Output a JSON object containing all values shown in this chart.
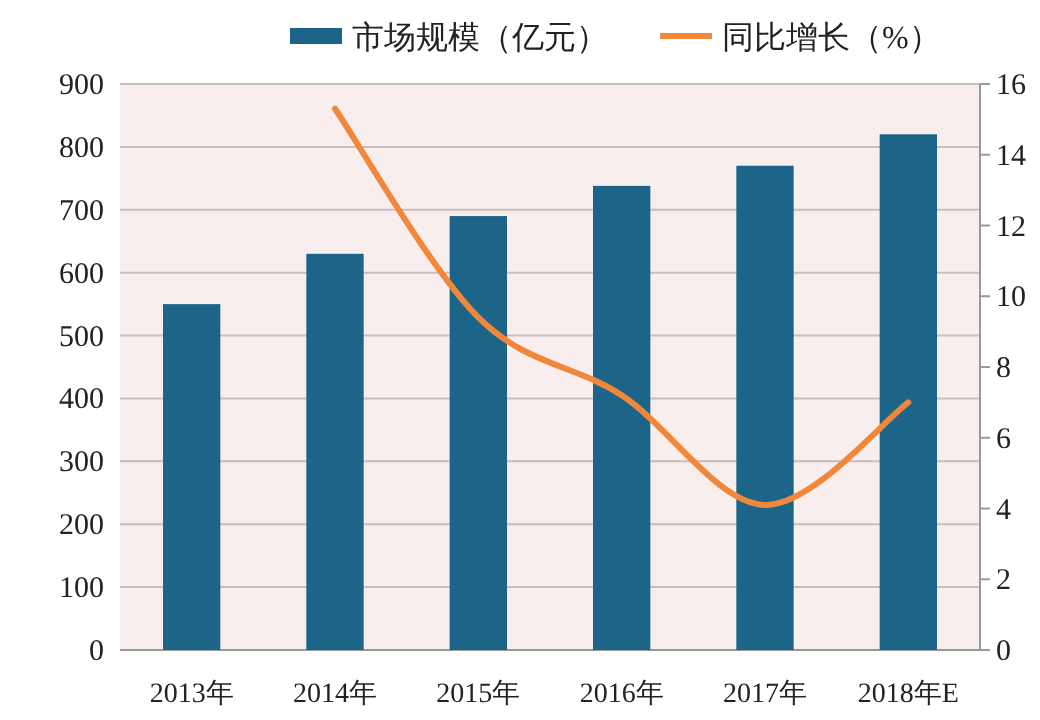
{
  "chart_data": {
    "type": "bar",
    "categories": [
      "2013年",
      "2014年",
      "2015年",
      "2016年",
      "2017年",
      "2018年E"
    ],
    "series": [
      {
        "name": "市场规模（亿元）",
        "color": "#1c6589",
        "values": [
          550,
          630,
          690,
          738,
          770,
          820
        ]
      },
      {
        "name": "同比增长（%）",
        "type": "line",
        "axis": "y2",
        "color": "#f0873a",
        "values": [
          null,
          15.3,
          9.4,
          7.2,
          4.1,
          7.0
        ]
      }
    ],
    "ylim": [
      0,
      900
    ],
    "yticks": [
      0,
      100,
      200,
      300,
      400,
      500,
      600,
      700,
      800,
      900
    ],
    "y2lim": [
      0,
      16
    ],
    "y2ticks": [
      0,
      2,
      4,
      6,
      8,
      10,
      12,
      14,
      16
    ],
    "grid": "y",
    "legend": "top",
    "marker": "none",
    "line_style": "solid"
  }
}
